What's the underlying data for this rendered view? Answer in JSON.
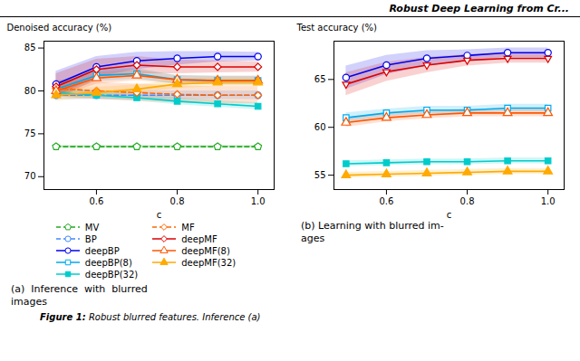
{
  "title": "Robust Deep Learning from Cr...",
  "caption": [
    "Figure 1:",
    " Robust blurred features. Inference (a)"
  ],
  "chart_data": [
    {
      "type": "line",
      "caption": [
        "(a)  Inference  with  blurred",
        "images"
      ],
      "xlabel": "c",
      "ylabel": "Denoised accuracy (%)",
      "x": [
        0.5,
        0.6,
        0.7,
        0.8,
        0.9,
        1.0
      ],
      "xlim": [
        0.47,
        1.04
      ],
      "xticks": [
        0.6,
        0.8,
        {
          "value": 1.0,
          "label": "1.0"
        }
      ],
      "ylim": [
        68.5,
        85.8
      ],
      "yticks": [
        70,
        75,
        80,
        85
      ],
      "legend": "bottom",
      "series": [
        {
          "name": "MV",
          "color": "#22aa22",
          "line_style": "dashed",
          "marker": "pentagon-open",
          "values": [
            73.5,
            73.5,
            73.5,
            73.5,
            73.5,
            73.5
          ],
          "errors": [
            0.15,
            0.15,
            0.15,
            0.15,
            0.15,
            0.15
          ]
        },
        {
          "name": "BP",
          "color": "#4488ff",
          "line_style": "dashed",
          "marker": "circle-open",
          "values": [
            79.5,
            79.5,
            79.5,
            79.5,
            79.5,
            79.5
          ],
          "errors": [
            0.5,
            0.5,
            0.5,
            0.5,
            0.5,
            0.5
          ]
        },
        {
          "name": "deepBP",
          "color": "#0000ee",
          "line_style": "solid",
          "marker": "circle-open",
          "values": [
            80.8,
            82.8,
            83.5,
            83.8,
            84.0,
            84.0
          ],
          "errors": [
            1.5,
            1.2,
            1.0,
            0.8,
            0.6,
            0.5
          ]
        },
        {
          "name": "deepBP(8)",
          "color": "#00aaee",
          "line_style": "solid",
          "marker": "square-open",
          "values": [
            80.2,
            81.8,
            82.0,
            81.3,
            81.2,
            81.2
          ],
          "errors": [
            0.8,
            0.7,
            0.6,
            0.5,
            0.5,
            0.5
          ]
        },
        {
          "name": "deepBP(32)",
          "color": "#00cccc",
          "line_style": "solid",
          "marker": "square",
          "values": [
            79.8,
            79.5,
            79.2,
            78.8,
            78.5,
            78.2
          ],
          "errors": [
            0.4,
            0.4,
            0.4,
            0.4,
            0.4,
            0.4
          ]
        },
        {
          "name": "MF",
          "color": "#ff6600",
          "line_style": "dashed",
          "marker": "diamond-open",
          "values": [
            80.3,
            80.0,
            79.8,
            79.6,
            79.5,
            79.5
          ],
          "errors": [
            1.0,
            1.0,
            1.0,
            1.0,
            1.0,
            1.0
          ]
        },
        {
          "name": "deepMF",
          "color": "#dd0000",
          "line_style": "solid",
          "marker": "diamond-open",
          "values": [
            80.5,
            82.5,
            83.0,
            82.8,
            82.8,
            82.8
          ],
          "errors": [
            1.5,
            1.2,
            1.0,
            0.8,
            0.7,
            0.6
          ]
        },
        {
          "name": "deepMF(8)",
          "color": "#ff5500",
          "line_style": "solid",
          "marker": "triangle-up-open",
          "values": [
            80.0,
            81.5,
            81.8,
            81.3,
            81.2,
            81.2
          ],
          "errors": [
            0.8,
            0.7,
            0.6,
            0.5,
            0.5,
            0.5
          ]
        },
        {
          "name": "deepMF(32)",
          "color": "#ffaa00",
          "line_style": "solid",
          "marker": "triangle-up",
          "values": [
            79.5,
            79.8,
            80.2,
            80.8,
            81.0,
            81.0
          ],
          "errors": [
            0.7,
            0.6,
            0.5,
            0.5,
            0.5,
            0.5
          ]
        }
      ]
    },
    {
      "type": "line",
      "caption": [
        "(b) Learning with blurred im-",
        "ages"
      ],
      "xlabel": "c",
      "ylabel": "Test accuracy (%)",
      "x": [
        0.5,
        0.6,
        0.7,
        0.8,
        0.9,
        1.0
      ],
      "xlim": [
        0.47,
        1.04
      ],
      "xticks": [
        0.6,
        0.8,
        {
          "value": 1.0,
          "label": "1.0"
        }
      ],
      "ylim": [
        53.5,
        69.0
      ],
      "yticks": [
        55,
        60,
        65
      ],
      "series": [
        {
          "name": "deepBP",
          "color": "#0000ee",
          "line_style": "solid",
          "marker": "circle-open",
          "values": [
            65.2,
            66.5,
            67.2,
            67.5,
            67.8,
            67.8
          ],
          "errors": [
            1.2,
            1.0,
            0.8,
            0.6,
            0.5,
            0.5
          ]
        },
        {
          "name": "deepBP(8)",
          "color": "#00aaee",
          "line_style": "solid",
          "marker": "square-open",
          "values": [
            61.0,
            61.5,
            61.8,
            61.8,
            62.0,
            62.0
          ],
          "errors": [
            0.5,
            0.4,
            0.4,
            0.4,
            0.4,
            0.4
          ]
        },
        {
          "name": "deepBP(32)",
          "color": "#00cccc",
          "line_style": "solid",
          "marker": "square",
          "values": [
            56.2,
            56.3,
            56.4,
            56.4,
            56.5,
            56.5
          ],
          "errors": [
            0.3,
            0.3,
            0.3,
            0.3,
            0.3,
            0.3
          ]
        },
        {
          "name": "deepMF",
          "color": "#dd0000",
          "line_style": "solid",
          "marker": "triangle-down-open",
          "values": [
            64.5,
            65.8,
            66.5,
            67.0,
            67.2,
            67.2
          ],
          "errors": [
            1.2,
            1.0,
            0.8,
            0.6,
            0.5,
            0.5
          ]
        },
        {
          "name": "deepMF(8)",
          "color": "#ff5500",
          "line_style": "solid",
          "marker": "triangle-up-open",
          "values": [
            60.5,
            61.0,
            61.3,
            61.5,
            61.5,
            61.5
          ],
          "errors": [
            0.5,
            0.4,
            0.4,
            0.4,
            0.4,
            0.4
          ]
        },
        {
          "name": "deepMF(32)",
          "color": "#ffaa00",
          "line_style": "solid",
          "marker": "triangle-up",
          "values": [
            55.0,
            55.1,
            55.2,
            55.3,
            55.4,
            55.4
          ],
          "errors": [
            0.3,
            0.3,
            0.3,
            0.3,
            0.3,
            0.3
          ]
        }
      ]
    }
  ]
}
